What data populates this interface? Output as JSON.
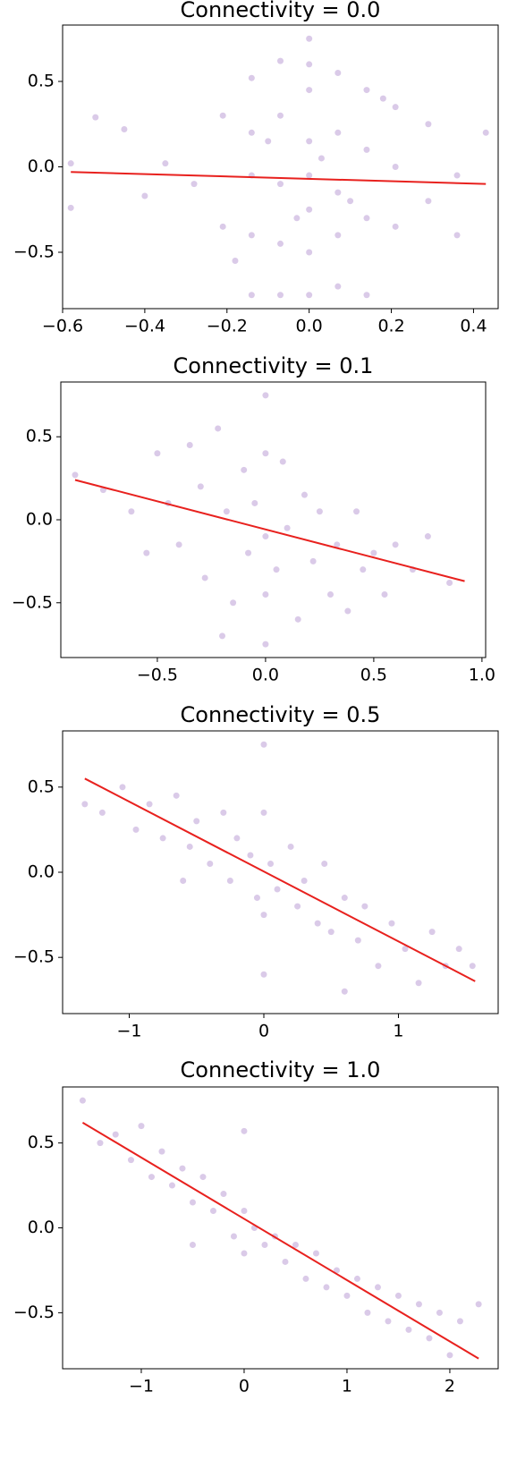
{
  "chart_data": [
    {
      "type": "scatter",
      "title": "Connectivity = 0.0",
      "color": "#9467bd",
      "x": [
        -0.58,
        -0.58,
        -0.52,
        -0.45,
        -0.4,
        -0.35,
        -0.28,
        -0.21,
        -0.21,
        -0.14,
        -0.14,
        -0.14,
        -0.14,
        -0.14,
        -0.07,
        -0.07,
        -0.07,
        -0.07,
        -0.07,
        0,
        0,
        0,
        0,
        0,
        0,
        0,
        0,
        0.07,
        0.07,
        0.07,
        0.07,
        0.07,
        0.14,
        0.14,
        0.14,
        0.14,
        0.21,
        0.21,
        0.21,
        0.29,
        0.29,
        0.36,
        0.36,
        0.43,
        -0.1,
        -0.03,
        0.03,
        0.1,
        -0.18,
        0.18
      ],
      "y": [
        0.02,
        -0.24,
        0.29,
        0.22,
        -0.17,
        0.02,
        -0.1,
        0.3,
        -0.35,
        0.52,
        0.2,
        -0.05,
        -0.4,
        -0.75,
        0.62,
        0.3,
        -0.1,
        -0.45,
        -0.75,
        0.75,
        0.45,
        0.15,
        -0.05,
        -0.25,
        -0.5,
        -0.75,
        0.6,
        0.55,
        0.2,
        -0.15,
        -0.4,
        -0.7,
        0.45,
        0.1,
        -0.3,
        -0.75,
        0.35,
        0.0,
        -0.35,
        0.25,
        -0.2,
        -0.05,
        -0.4,
        0.2,
        0.15,
        -0.3,
        0.05,
        -0.2,
        -0.55,
        0.4
      ],
      "fit": {
        "color": "#e8211e",
        "x": [
          -0.58,
          0.43
        ],
        "y": [
          -0.03,
          -0.1
        ]
      },
      "xlim": [
        -0.6,
        0.46
      ],
      "ylim": [
        -0.83,
        0.83
      ],
      "xticks": [
        {
          "value": -0.6,
          "label": "−0.6"
        },
        {
          "value": -0.4,
          "label": "−0.4"
        },
        {
          "value": -0.2,
          "label": "−0.2"
        },
        {
          "value": 0,
          "label": "0.0"
        },
        0.2,
        0.4
      ],
      "yticks": [
        {
          "value": -0.5,
          "label": "−0.5"
        },
        {
          "value": 0,
          "label": "0.0"
        },
        0.5
      ]
    },
    {
      "type": "scatter",
      "title": "Connectivity = 0.1",
      "color": "#9467bd",
      "x": [
        -0.88,
        -0.75,
        -0.62,
        -0.55,
        -0.5,
        -0.45,
        -0.4,
        -0.35,
        -0.3,
        -0.28,
        -0.22,
        -0.18,
        -0.15,
        -0.1,
        -0.08,
        -0.05,
        0,
        0,
        0,
        0,
        0,
        0.05,
        0.08,
        0.1,
        0.15,
        0.18,
        0.22,
        0.25,
        0.3,
        0.33,
        0.38,
        0.42,
        0.45,
        0.5,
        0.55,
        0.6,
        0.68,
        0.75,
        0.85,
        -0.2
      ],
      "y": [
        0.27,
        0.18,
        0.05,
        -0.2,
        0.4,
        0.1,
        -0.15,
        0.45,
        0.2,
        -0.35,
        0.55,
        0.05,
        -0.5,
        0.3,
        -0.2,
        0.1,
        0.75,
        0.4,
        -0.1,
        -0.45,
        -0.75,
        -0.3,
        0.35,
        -0.05,
        -0.6,
        0.15,
        -0.25,
        0.05,
        -0.45,
        -0.15,
        -0.55,
        0.05,
        -0.3,
        -0.2,
        -0.45,
        -0.15,
        -0.3,
        -0.1,
        -0.38,
        -0.7
      ],
      "fit": {
        "color": "#e8211e",
        "x": [
          -0.88,
          0.92
        ],
        "y": [
          0.24,
          -0.37
        ]
      },
      "xlim": [
        -0.946,
        1.017
      ],
      "ylim": [
        -0.83,
        0.83
      ],
      "xticks": [
        {
          "value": -0.5,
          "label": "−0.5"
        },
        {
          "value": 0,
          "label": "0.0"
        },
        0.5,
        {
          "value": 1,
          "label": "1.0"
        }
      ],
      "yticks": [
        {
          "value": -0.5,
          "label": "−0.5"
        },
        {
          "value": 0,
          "label": "0.0"
        },
        0.5
      ]
    },
    {
      "type": "scatter",
      "title": "Connectivity = 0.5",
      "color": "#9467bd",
      "x": [
        -1.33,
        -1.2,
        -1.05,
        -0.95,
        -0.85,
        -0.75,
        -0.65,
        -0.55,
        -0.5,
        -0.4,
        -0.3,
        -0.25,
        -0.2,
        -0.1,
        -0.05,
        0,
        0,
        0,
        0,
        0.05,
        0.1,
        0.2,
        0.25,
        0.3,
        0.4,
        0.45,
        0.5,
        0.6,
        0.7,
        0.75,
        0.85,
        0.95,
        1.05,
        1.15,
        1.25,
        1.35,
        1.45,
        1.55,
        -0.6,
        0.6
      ],
      "y": [
        0.4,
        0.35,
        0.5,
        0.25,
        0.4,
        0.2,
        0.45,
        0.15,
        0.3,
        0.05,
        0.35,
        -0.05,
        0.2,
        0.1,
        -0.15,
        0.75,
        0.35,
        -0.25,
        -0.6,
        0.05,
        -0.1,
        0.15,
        -0.2,
        -0.05,
        -0.3,
        0.05,
        -0.35,
        -0.15,
        -0.4,
        -0.2,
        -0.55,
        -0.3,
        -0.45,
        -0.65,
        -0.35,
        -0.55,
        -0.45,
        -0.55,
        -0.05,
        -0.7
      ],
      "fit": {
        "color": "#e8211e",
        "x": [
          -1.33,
          1.57
        ],
        "y": [
          0.55,
          -0.64
        ]
      },
      "xlim": [
        -1.495,
        1.741
      ],
      "ylim": [
        -0.83,
        0.83
      ],
      "xticks": [
        {
          "value": -1,
          "label": "−1"
        },
        0,
        1
      ],
      "yticks": [
        {
          "value": -0.5,
          "label": "−0.5"
        },
        {
          "value": 0,
          "label": "0.0"
        },
        0.5
      ]
    },
    {
      "type": "scatter",
      "title": "Connectivity = 1.0",
      "color": "#9467bd",
      "x": [
        -1.57,
        -1.4,
        -1.25,
        -1.1,
        -1.0,
        -0.9,
        -0.8,
        -0.7,
        -0.6,
        -0.5,
        -0.4,
        -0.3,
        -0.2,
        -0.1,
        0,
        0,
        0,
        0.1,
        0.2,
        0.3,
        0.4,
        0.5,
        0.6,
        0.7,
        0.8,
        0.9,
        1.0,
        1.1,
        1.2,
        1.3,
        1.4,
        1.5,
        1.6,
        1.7,
        1.8,
        1.9,
        2.0,
        2.1,
        2.28,
        -0.5
      ],
      "y": [
        0.75,
        0.5,
        0.55,
        0.4,
        0.6,
        0.3,
        0.45,
        0.25,
        0.35,
        0.15,
        0.3,
        0.1,
        0.2,
        -0.05,
        0.57,
        0.1,
        -0.15,
        0.0,
        -0.1,
        -0.05,
        -0.2,
        -0.1,
        -0.3,
        -0.15,
        -0.35,
        -0.25,
        -0.4,
        -0.3,
        -0.5,
        -0.35,
        -0.55,
        -0.4,
        -0.6,
        -0.45,
        -0.65,
        -0.5,
        -0.75,
        -0.55,
        -0.45,
        -0.1
      ],
      "fit": {
        "color": "#e8211e",
        "x": [
          -1.57,
          2.28
        ],
        "y": [
          0.62,
          -0.77
        ]
      },
      "xlim": [
        -1.765,
        2.47
      ],
      "ylim": [
        -0.83,
        0.83
      ],
      "xticks": [
        {
          "value": -1,
          "label": "−1"
        },
        0,
        1,
        2
      ],
      "yticks": [
        {
          "value": -0.5,
          "label": "−0.5"
        },
        {
          "value": 0,
          "label": "0.0"
        },
        0.5
      ]
    }
  ]
}
